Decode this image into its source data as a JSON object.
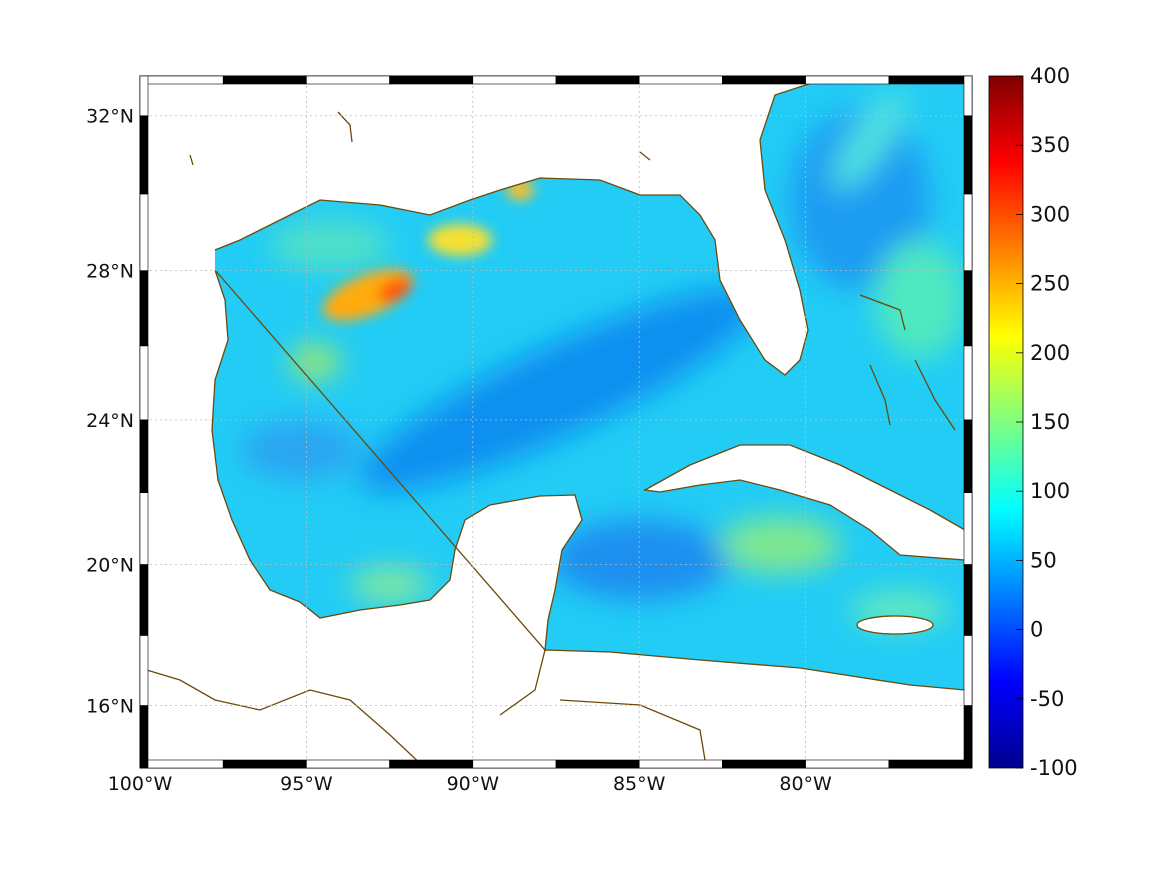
{
  "chart_data": {
    "type": "heatmap",
    "title": "",
    "region": "Gulf of Mexico and Caribbean",
    "x_ticks": [
      {
        "value": -100,
        "label": "100°W"
      },
      {
        "value": -95,
        "label": "95°W"
      },
      {
        "value": -90,
        "label": "90°W"
      },
      {
        "value": -85,
        "label": "85°W"
      },
      {
        "value": -80,
        "label": "80°W"
      }
    ],
    "y_ticks": [
      {
        "value": 32,
        "label": "32°N"
      },
      {
        "value": 28,
        "label": "28°N"
      },
      {
        "value": 24,
        "label": "24°N"
      },
      {
        "value": 20,
        "label": "20°N"
      },
      {
        "value": 16,
        "label": "16°N"
      }
    ],
    "xlim": [
      -100,
      -75
    ],
    "ylim": [
      14.2,
      33
    ],
    "grid": true,
    "colorbar": {
      "colormap": "jet",
      "range": [
        -100,
        400
      ],
      "ticks": [
        "400",
        "350",
        "300",
        "250",
        "200",
        "150",
        "100",
        "50",
        "0",
        "-50",
        "-100"
      ],
      "placement": "right"
    },
    "features": {
      "max_region": {
        "value_approx": 280,
        "location": "off Louisiana coast ~27N 93W"
      },
      "typical_value": 80
    },
    "coastline_color": "#6b4a0a"
  }
}
